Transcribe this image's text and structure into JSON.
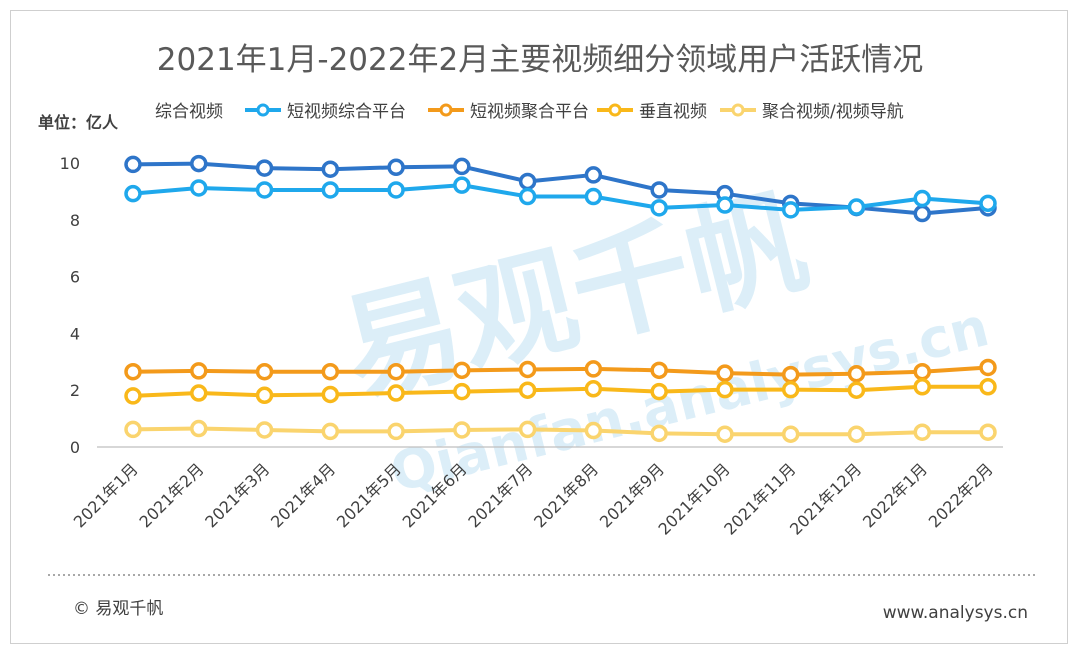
{
  "title": "2021年1月-2022年2月主要视频细分领域用户活跃情况",
  "unit_label": "单位：亿人",
  "footer": {
    "left": "© 易观千帆",
    "right": "www.analysys.cn"
  },
  "watermark": {
    "main": "易观千帆",
    "sub": "Qianfan.analysys.cn"
  },
  "chart_data": {
    "type": "line",
    "x": [
      "2021年1月",
      "2021年2月",
      "2021年3月",
      "2021年4月",
      "2021年5月",
      "2021年6月",
      "2021年7月",
      "2021年8月",
      "2021年9月",
      "2021年10月",
      "2021年11月",
      "2021年12月",
      "2022年1月",
      "2022年2月"
    ],
    "ylim": [
      0,
      10
    ],
    "yticks": [
      0,
      2,
      4,
      6,
      8,
      10
    ],
    "grid": false,
    "legend_position": "top",
    "series": [
      {
        "name": "综合视频",
        "color": "#2e75c9",
        "values": [
          9.95,
          9.98,
          9.82,
          9.78,
          9.85,
          9.88,
          9.35,
          9.58,
          9.05,
          8.92,
          8.58,
          8.43,
          8.22,
          8.42
        ]
      },
      {
        "name": "短视频综合平台",
        "color": "#1fa8ec",
        "values": [
          8.92,
          9.12,
          9.05,
          9.05,
          9.05,
          9.22,
          8.82,
          8.82,
          8.42,
          8.52,
          8.35,
          8.45,
          8.75,
          8.58
        ]
      },
      {
        "name": "短视频聚合平台",
        "color": "#f39a1b",
        "values": [
          2.65,
          2.68,
          2.65,
          2.65,
          2.65,
          2.7,
          2.73,
          2.75,
          2.7,
          2.6,
          2.55,
          2.58,
          2.65,
          2.8
        ]
      },
      {
        "name": "垂直视频",
        "color": "#f9b81a",
        "values": [
          1.8,
          1.9,
          1.82,
          1.85,
          1.9,
          1.95,
          2.0,
          2.05,
          1.95,
          2.02,
          2.02,
          2.0,
          2.12,
          2.12
        ]
      },
      {
        "name": "聚合视频/视频导航",
        "color": "#fad46e",
        "values": [
          0.62,
          0.65,
          0.6,
          0.55,
          0.55,
          0.6,
          0.62,
          0.58,
          0.48,
          0.45,
          0.45,
          0.45,
          0.52,
          0.52
        ]
      }
    ]
  }
}
